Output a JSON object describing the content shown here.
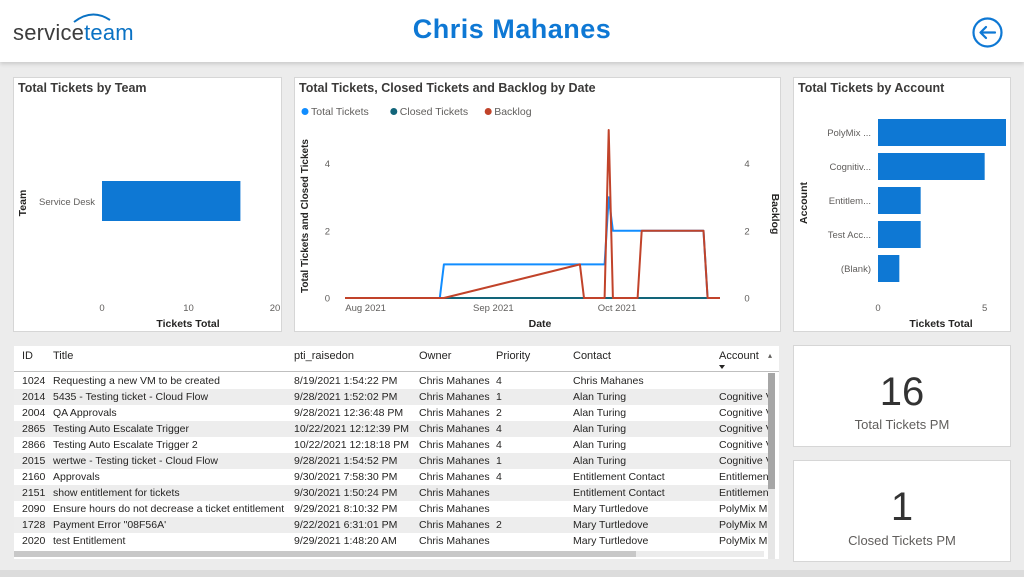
{
  "header": {
    "logo_left": "service",
    "logo_right": "team",
    "title": "Chris Mahanes",
    "back_icon": "arrow-left-circle-icon",
    "accent": "#0e78d4"
  },
  "team_chart": {
    "title": "Total Tickets by Team",
    "chart_data": {
      "type": "bar",
      "orientation": "horizontal",
      "categories": [
        "Service Desk"
      ],
      "values": [
        16
      ],
      "xlabel": "Tickets Total",
      "ylabel": "Team",
      "xlim": [
        0,
        20
      ],
      "xticks": [
        "0",
        "10",
        "20"
      ],
      "color": "#0e78d4"
    }
  },
  "date_chart": {
    "title": "Total Tickets, Closed Tickets and Backlog by Date",
    "chart_data": {
      "type": "line",
      "xlabel": "Date",
      "ylabel_left": "Total Tickets and Closed Tickets",
      "ylabel_right": "Backlog",
      "xticks": [
        "Aug 2021",
        "Sep 2021",
        "Oct 2021"
      ],
      "yticks_left": [
        "0",
        "2",
        "4"
      ],
      "yticks_right": [
        "0",
        "2",
        "4"
      ],
      "legend": [
        {
          "name": "Total Tickets",
          "color": "#118dff"
        },
        {
          "name": "Closed Tickets",
          "color": "#12657a"
        },
        {
          "name": "Backlog",
          "color": "#c1432a"
        }
      ],
      "x": [
        "2021-07-27",
        "2021-08-19",
        "2021-08-20",
        "2021-09-22",
        "2021-09-23",
        "2021-09-28",
        "2021-09-29",
        "2021-09-30",
        "2021-10-01",
        "2021-10-05",
        "2021-10-06",
        "2021-10-07",
        "2021-10-22",
        "2021-10-23",
        "2021-10-26"
      ],
      "series": [
        {
          "name": "Total Tickets",
          "values": [
            0,
            0,
            1,
            1,
            1,
            1,
            3,
            2,
            2,
            2,
            2,
            2,
            2,
            0,
            0
          ]
        },
        {
          "name": "Closed Tickets",
          "values": [
            0,
            0,
            0,
            0,
            0,
            0,
            0,
            0,
            0,
            0,
            0,
            0,
            0,
            0,
            0
          ]
        },
        {
          "name": "Backlog",
          "values": [
            0,
            0,
            0,
            1,
            0,
            0,
            5,
            0,
            0,
            0,
            0,
            2,
            2,
            0,
            0
          ]
        }
      ]
    }
  },
  "account_chart": {
    "title": "Total Tickets by Account",
    "chart_data": {
      "type": "bar",
      "orientation": "horizontal",
      "categories": [
        "PolyMix ...",
        "Cognitiv...",
        "Entitlem...",
        "Test Acc...",
        "(Blank)"
      ],
      "values": [
        6,
        5,
        2,
        2,
        1
      ],
      "xlabel": "Tickets Total",
      "ylabel": "Account",
      "xlim": [
        0,
        6
      ],
      "xticks": [
        "0",
        "5"
      ],
      "color": "#0e78d4"
    }
  },
  "table": {
    "columns": [
      "ID",
      "Title",
      "pti_raisedon",
      "Owner",
      "Priority",
      "Contact",
      "Account"
    ],
    "rows": [
      [
        "1024",
        "Requesting a new VM to be created",
        "8/19/2021 1:54:22 PM",
        "Chris Mahanes",
        "4",
        "Chris Mahanes",
        ""
      ],
      [
        "2014",
        "5435 - Testing ticket - Cloud Flow",
        "9/28/2021 1:52:02 PM",
        "Chris Mahanes",
        "1",
        "Alan Turing",
        "Cognitive V"
      ],
      [
        "2004",
        "QA Approvals",
        "9/28/2021 12:36:48 PM",
        "Chris Mahanes",
        "2",
        "Alan Turing",
        "Cognitive V"
      ],
      [
        "2865",
        "Testing Auto Escalate Trigger",
        "10/22/2021 12:12:39 PM",
        "Chris Mahanes",
        "4",
        "Alan Turing",
        "Cognitive V"
      ],
      [
        "2866",
        "Testing Auto Escalate Trigger 2",
        "10/22/2021 12:18:18 PM",
        "Chris Mahanes",
        "4",
        "Alan Turing",
        "Cognitive V"
      ],
      [
        "2015",
        "wertwe - Testing ticket - Cloud Flow",
        "9/28/2021 1:54:52 PM",
        "Chris Mahanes",
        "1",
        "Alan Turing",
        "Cognitive V"
      ],
      [
        "2160",
        "Approvals",
        "9/30/2021 7:58:30 PM",
        "Chris Mahanes",
        "4",
        "Entitlement Contact",
        "Entitlemen"
      ],
      [
        "2151",
        "show entitlement for tickets",
        "9/30/2021 1:50:24 PM",
        "Chris Mahanes",
        "",
        "Entitlement Contact",
        "Entitlemen"
      ],
      [
        "2090",
        "Ensure hours do not decrease a ticket entitlement",
        "9/29/2021 8:10:32 PM",
        "Chris Mahanes",
        "",
        "Mary Turtledove",
        "PolyMix M"
      ],
      [
        "1728",
        "Payment Error \"08F56A'",
        "9/22/2021 6:31:01 PM",
        "Chris Mahanes",
        "2",
        "Mary Turtledove",
        "PolyMix M"
      ],
      [
        "2020",
        "test Entitlement",
        "9/29/2021 1:48:20 AM",
        "Chris Mahanes",
        "",
        "Mary Turtledove",
        "PolyMix M"
      ]
    ]
  },
  "kpis": [
    {
      "value": "16",
      "label": "Total Tickets PM"
    },
    {
      "value": "1",
      "label": "Closed Tickets PM"
    }
  ]
}
